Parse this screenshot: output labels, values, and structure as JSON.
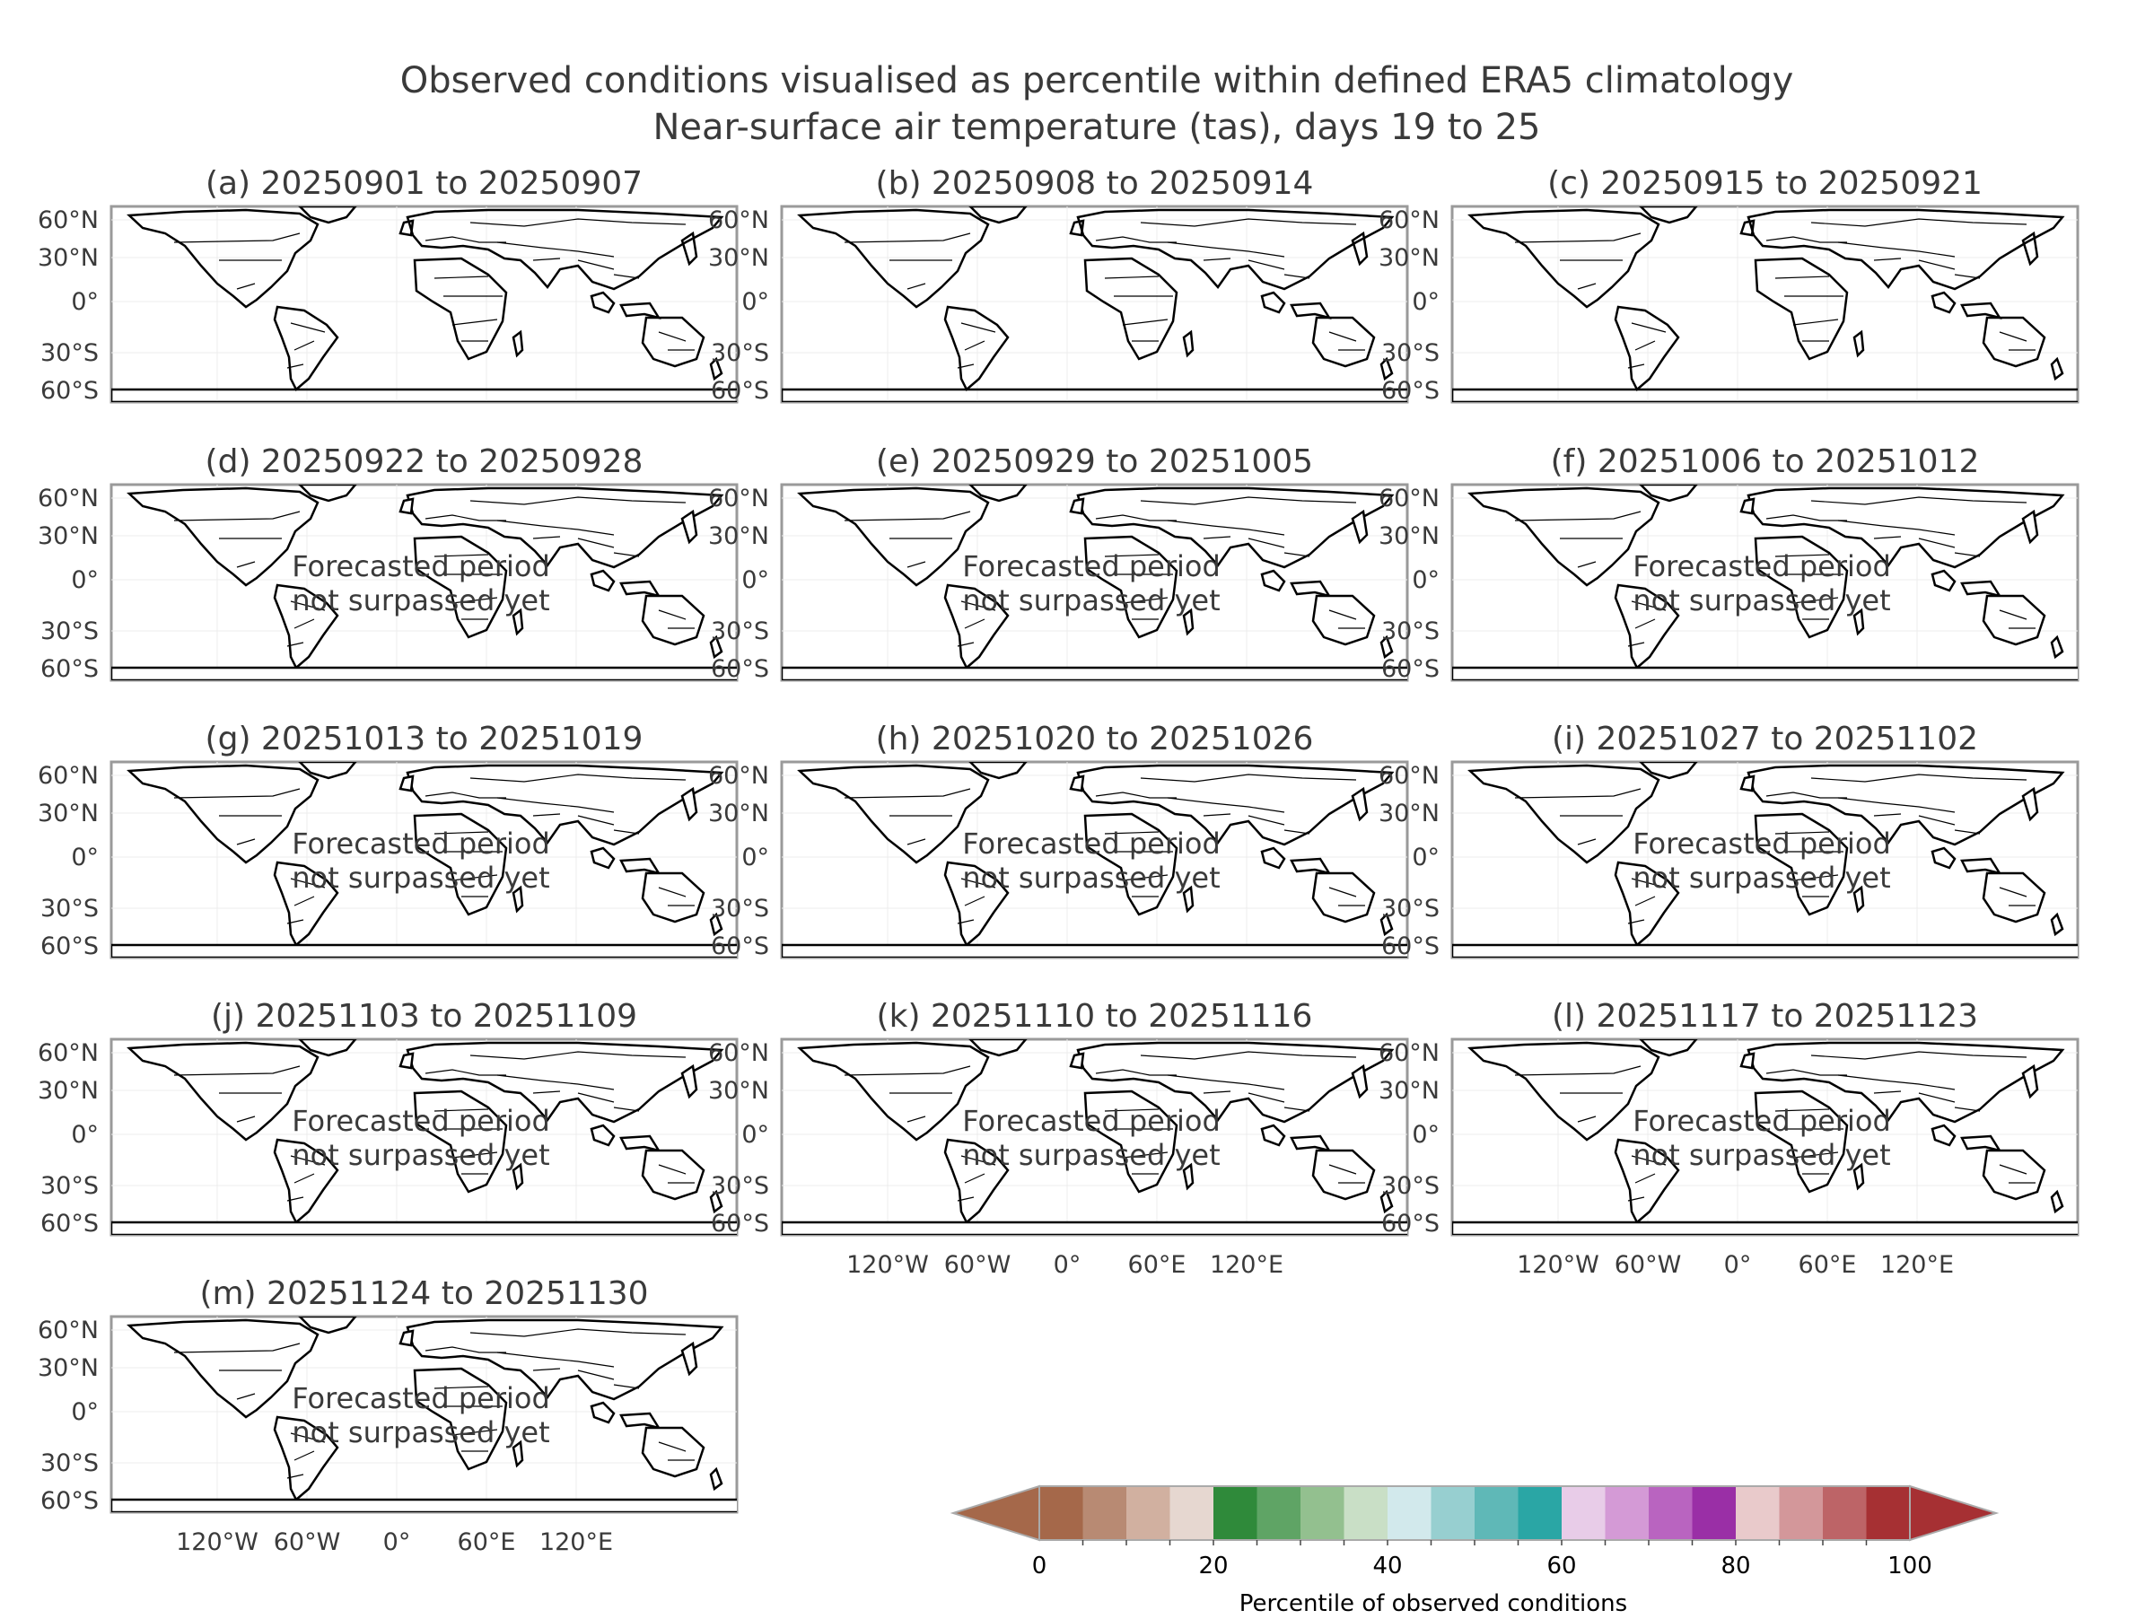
{
  "title_line1": "Observed conditions visualised as percentile within defined ERA5 climatology",
  "title_line2": "Near-surface air temperature (tas), days 19 to 25",
  "lat_labels": [
    "60°N",
    "30°N",
    "0°",
    "30°S",
    "60°S"
  ],
  "lon_labels": [
    "120°W",
    "60°W",
    "0°",
    "60°E",
    "120°E"
  ],
  "placeholder_line1": "Forecasted period",
  "placeholder_line2": "not surpassed yet",
  "panels": [
    {
      "title": "(a) 20250901 to 20250907",
      "observed": true
    },
    {
      "title": "(b) 20250908 to 20250914",
      "observed": true
    },
    {
      "title": "(c) 20250915 to 20250921",
      "observed": true
    },
    {
      "title": "(d) 20250922 to 20250928",
      "observed": false
    },
    {
      "title": "(e) 20250929 to 20251005",
      "observed": false
    },
    {
      "title": "(f) 20251006 to 20251012",
      "observed": false
    },
    {
      "title": "(g) 20251013 to 20251019",
      "observed": false
    },
    {
      "title": "(h) 20251020 to 20251026",
      "observed": false
    },
    {
      "title": "(i) 20251027 to 20251102",
      "observed": false
    },
    {
      "title": "(j) 20251103 to 20251109",
      "observed": false
    },
    {
      "title": "(k) 20251110 to 20251116",
      "observed": false
    },
    {
      "title": "(l) 20251117 to 20251123",
      "observed": false
    },
    {
      "title": "(m) 20251124 to 20251130",
      "observed": false
    }
  ],
  "colorbar": {
    "label": "Percentile of observed conditions",
    "tick_labels": [
      "0",
      "20",
      "40",
      "60",
      "80",
      "100"
    ],
    "colors": [
      "#a5684a",
      "#b88a73",
      "#d1b0a0",
      "#e6d7d0",
      "#2f8a3a",
      "#5fa465",
      "#93c08f",
      "#c9dfc6",
      "#d2e9ec",
      "#97cfd0",
      "#5fb8b7",
      "#2aa6a5",
      "#e8cce8",
      "#d49ad6",
      "#b964c0",
      "#9a2fa6",
      "#e9cacb",
      "#d3979a",
      "#bd6467",
      "#a63033"
    ]
  }
}
